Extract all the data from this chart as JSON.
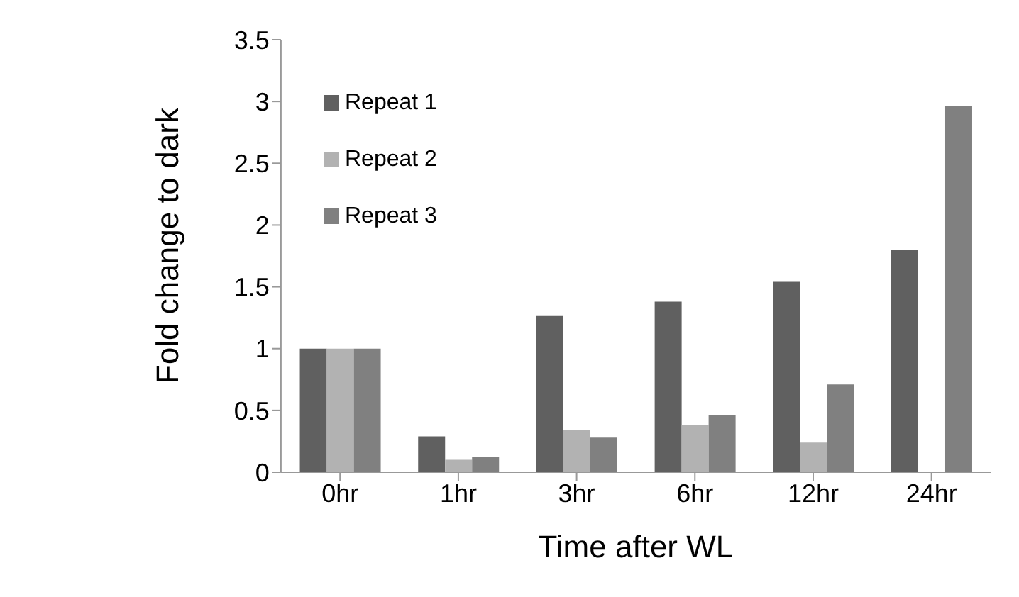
{
  "chart_data": {
    "type": "bar",
    "xlabel": "Time after WL",
    "ylabel": "Fold change to dark",
    "categories": [
      "0hr",
      "1hr",
      "3hr",
      "6hr",
      "12hr",
      "24hr"
    ],
    "series": [
      {
        "name": "Repeat 1",
        "color": "#606060",
        "values": [
          1,
          0.29,
          1.27,
          1.38,
          1.54,
          1.8
        ]
      },
      {
        "name": "Repeat 2",
        "color": "#b2b2b2",
        "values": [
          1,
          0.1,
          0.34,
          0.38,
          0.24,
          null
        ]
      },
      {
        "name": "Repeat 3",
        "color": "#808080",
        "values": [
          1,
          0.12,
          0.28,
          0.46,
          0.71,
          2.96
        ]
      }
    ],
    "ylim": [
      0,
      3.5
    ],
    "yticks": [
      0,
      0.5,
      1,
      1.5,
      2,
      2.5,
      3,
      3.5
    ],
    "grid": false,
    "legend": "top left"
  }
}
